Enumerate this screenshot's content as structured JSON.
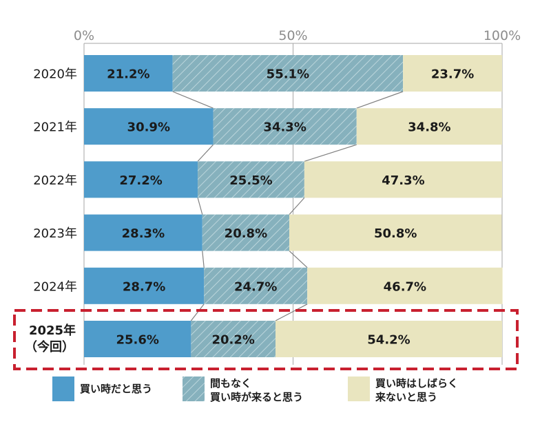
{
  "chart_data": {
    "type": "bar",
    "orientation": "horizontal",
    "stacked": true,
    "title": "",
    "xlabel": "",
    "ylabel": "",
    "xlim": [
      0,
      100
    ],
    "x_ticks": [
      "0%",
      "50%",
      "100%"
    ],
    "grid": "vertical line at 50%",
    "categories": [
      "2020年",
      "2021年",
      "2022年",
      "2023年",
      "2024年",
      "2025年"
    ],
    "highlight": {
      "category_index": 5,
      "label_line1": "2025年",
      "label_line2": "（今回）"
    },
    "series": [
      {
        "name": "買い時だと思う",
        "legend_lines": [
          "買い時だと思う"
        ],
        "color": "#4f9ccb",
        "pattern": "solid",
        "values": [
          21.2,
          30.9,
          27.2,
          28.3,
          28.7,
          25.6
        ],
        "labels": [
          "21.2%",
          "30.9%",
          "27.2%",
          "28.3%",
          "28.7%",
          "25.6%"
        ]
      },
      {
        "name": "間もなく買い時が来ると思う",
        "legend_lines": [
          "間もなく",
          "買い時が来ると思う"
        ],
        "color": "#8bb5bf",
        "pattern": "hatched",
        "values": [
          55.1,
          34.3,
          25.5,
          20.8,
          24.7,
          20.2
        ],
        "labels": [
          "55.1%",
          "34.3%",
          "25.5%",
          "20.8%",
          "24.7%",
          "20.2%"
        ]
      },
      {
        "name": "買い時はしばらく来ないと思う",
        "legend_lines": [
          "買い時はしばらく",
          "来ないと思う"
        ],
        "color": "#e9e5bf",
        "pattern": "solid",
        "values": [
          23.7,
          34.8,
          47.3,
          50.8,
          46.7,
          54.2
        ],
        "labels": [
          "23.7%",
          "34.8%",
          "47.3%",
          "50.8%",
          "46.7%",
          "54.2%"
        ]
      }
    ],
    "legend_position": "bottom",
    "highlight_color": "#c8202f"
  }
}
